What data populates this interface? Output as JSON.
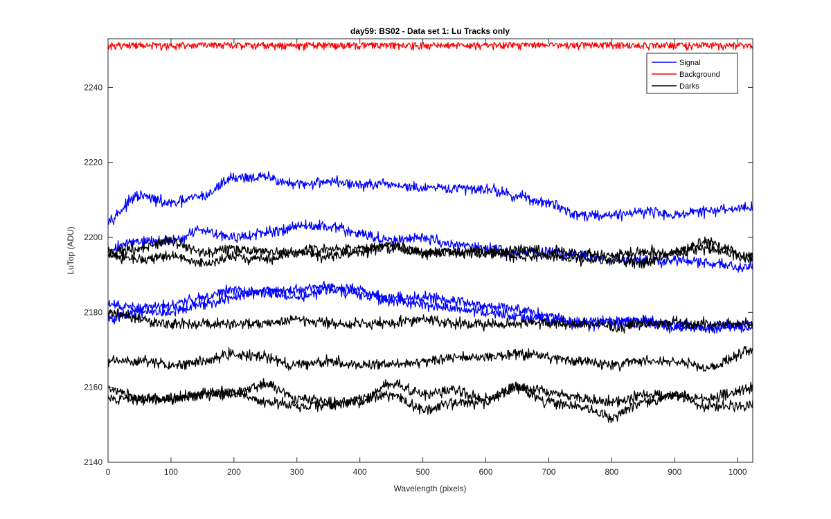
{
  "chart_data": {
    "type": "line",
    "title": "day59: BS02 - Data set 1: Lu Tracks only",
    "xlabel": "Wavelength (pixels)",
    "ylabel": "LuTop (ADU)",
    "xlim": [
      0,
      1024
    ],
    "ylim": [
      2140,
      2253
    ],
    "x_ticks": [
      0,
      100,
      200,
      300,
      400,
      500,
      600,
      700,
      800,
      900,
      1000
    ],
    "y_ticks": [
      2140,
      2160,
      2180,
      2200,
      2220,
      2240
    ],
    "x_tick_labels": [
      "0",
      "100",
      "200",
      "300",
      "400",
      "500",
      "600",
      "700",
      "800",
      "900",
      "1000"
    ],
    "y_tick_labels": [
      "2140",
      "2160",
      "2180",
      "2200",
      "2220",
      "2240"
    ],
    "grid": false,
    "legend_position": "top-right",
    "legend": [
      "Signal",
      "Background",
      "Darks"
    ],
    "colors": {
      "Signal": "#0000ff",
      "Background": "#ff0000",
      "Darks": "#000000"
    },
    "x_knots": [
      0,
      50,
      100,
      150,
      200,
      250,
      300,
      350,
      400,
      450,
      500,
      550,
      600,
      650,
      700,
      750,
      800,
      850,
      900,
      950,
      1024
    ],
    "series": [
      {
        "group": "Signal",
        "values": [
          2205,
          2211,
          2209,
          2211,
          2216,
          2216,
          2214,
          2215,
          2214,
          2214,
          2213,
          2213,
          2213,
          2211,
          2209,
          2206,
          2206,
          2207,
          2206,
          2207,
          2208
        ]
      },
      {
        "group": "Signal",
        "values": [
          2197,
          2199,
          2199,
          2202,
          2200,
          2201,
          2203,
          2203,
          2201,
          2199,
          2200,
          2198,
          2197,
          2196,
          2196,
          2195,
          2194,
          2194,
          2194,
          2193,
          2192
        ]
      },
      {
        "group": "Signal",
        "values": [
          2182,
          2181,
          2182,
          2184,
          2186,
          2185,
          2186,
          2187,
          2186,
          2184,
          2184,
          2183,
          2182,
          2181,
          2179,
          2177,
          2177,
          2177,
          2177,
          2176,
          2176
        ]
      },
      {
        "group": "Signal",
        "values": [
          2178,
          2180,
          2180,
          2182,
          2184,
          2186,
          2184,
          2186,
          2185,
          2183,
          2182,
          2181,
          2180,
          2179,
          2178,
          2177,
          2178,
          2178,
          2176,
          2176,
          2177
        ]
      },
      {
        "group": "Background",
        "values": [
          2252,
          2252,
          2252,
          2252,
          2252,
          2252,
          2252,
          2252,
          2252,
          2252,
          2252,
          2252,
          2252,
          2252,
          2252,
          2252,
          2252,
          2252,
          2252,
          2252,
          2252
        ]
      },
      {
        "group": "Darks",
        "values": [
          2196,
          2197,
          2199,
          2196,
          2197,
          2196,
          2196,
          2197,
          2197,
          2197,
          2196,
          2196,
          2196,
          2197,
          2196,
          2196,
          2195,
          2196,
          2196,
          2197,
          2195
        ]
      },
      {
        "group": "Darks",
        "values": [
          2195,
          2194,
          2195,
          2193,
          2195,
          2194,
          2196,
          2195,
          2196,
          2198,
          2196,
          2196,
          2196,
          2195,
          2195,
          2194,
          2194,
          2193,
          2196,
          2199,
          2194
        ]
      },
      {
        "group": "Darks",
        "values": [
          2180,
          2178,
          2177,
          2177,
          2177,
          2177,
          2178,
          2177,
          2177,
          2177,
          2178,
          2177,
          2177,
          2177,
          2177,
          2177,
          2176,
          2177,
          2177,
          2177,
          2177
        ]
      },
      {
        "group": "Darks",
        "values": [
          2167,
          2167,
          2166,
          2167,
          2169,
          2168,
          2166,
          2167,
          2166,
          2166,
          2167,
          2168,
          2168,
          2169,
          2168,
          2167,
          2166,
          2167,
          2167,
          2165,
          2170
        ]
      },
      {
        "group": "Darks",
        "values": [
          2160,
          2157,
          2157,
          2158,
          2158,
          2161,
          2157,
          2156,
          2156,
          2161,
          2158,
          2159,
          2157,
          2160,
          2159,
          2157,
          2156,
          2158,
          2158,
          2157,
          2160
        ]
      },
      {
        "group": "Darks",
        "values": [
          2157,
          2157,
          2157,
          2158,
          2159,
          2156,
          2155,
          2155,
          2157,
          2158,
          2154,
          2156,
          2156,
          2160,
          2156,
          2155,
          2152,
          2156,
          2158,
          2155,
          2155
        ]
      }
    ]
  }
}
